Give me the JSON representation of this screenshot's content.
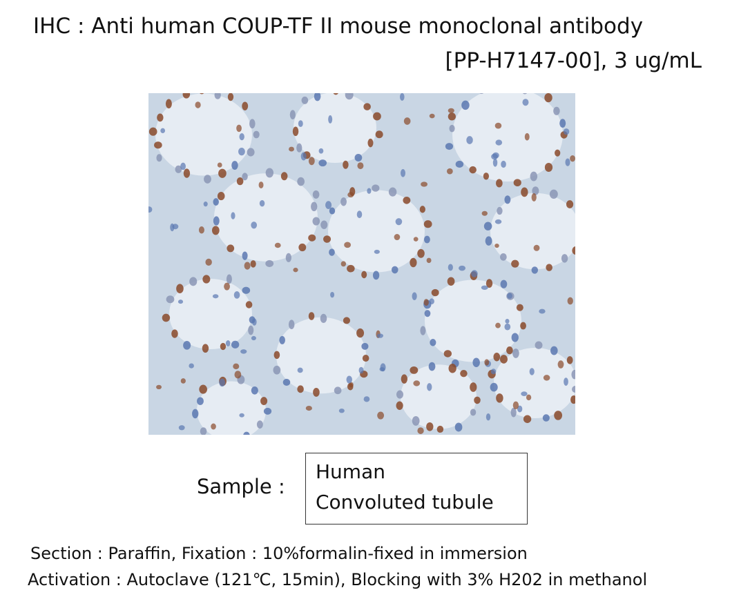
{
  "title": {
    "line1": "IHC : Anti human COUP-TF II mouse monoclonal antibody",
    "line2": "[PP-H7147-00],   3 ug/mL"
  },
  "image": {
    "stain_colors": {
      "nuclei_positive": "#8a4a2a",
      "nuclei_negative": "#5a78b0",
      "background": "#c9d6e4"
    }
  },
  "sample": {
    "label": "Sample :",
    "species": "Human",
    "tissue": "Convoluted tubule"
  },
  "footer": {
    "line1": "Section : Paraffin,    Fixation : 10%formalin-fixed in immersion",
    "line2": "Activation : Autoclave (121℃, 15min),    Blocking with 3% H202 in methanol"
  }
}
